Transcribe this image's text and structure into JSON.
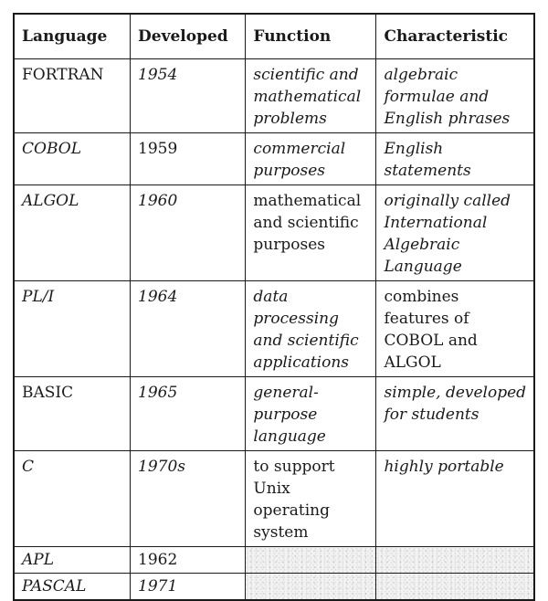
{
  "table": {
    "headers": [
      "Language",
      "Developed",
      "Function",
      "Characteristic"
    ],
    "rows": [
      {
        "language": "FORTRAN",
        "developed": "1954",
        "function": "scientific and mathematical problems",
        "characteristic": "algebraic formulae and English phrases"
      },
      {
        "language": "COBOL",
        "developed": "1959",
        "function": "commercial purposes",
        "characteristic": "English statements"
      },
      {
        "language": "ALGOL",
        "developed": "1960",
        "function": "mathematical and scientific purposes",
        "characteristic": "originally called International Algebraic Language"
      },
      {
        "language": "PL/I",
        "developed": "1964",
        "function": "data processing and scientific applications",
        "characteristic": "combines features of COBOL and ALGOL"
      },
      {
        "language": "BASIC",
        "developed": "1965",
        "function": "general-purpose language",
        "characteristic": "simple, developed for students"
      },
      {
        "language": "C",
        "developed": "1970s",
        "function": "to support Unix operating system",
        "characteristic": "highly portable"
      },
      {
        "language": "APL",
        "developed": "1962",
        "function": "",
        "characteristic": ""
      },
      {
        "language": "PASCAL",
        "developed": "1971",
        "function": "",
        "characteristic": ""
      }
    ]
  }
}
